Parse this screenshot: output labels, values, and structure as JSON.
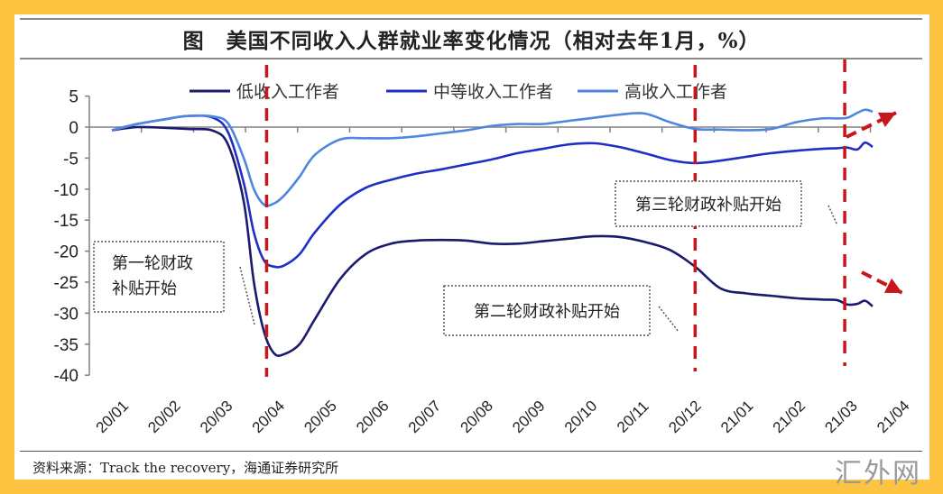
{
  "chart_data": {
    "type": "line",
    "title": "图　美国不同收入人群就业率变化情况（相对去年1月，%）",
    "xlabel": "",
    "ylabel": "",
    "ylim": [
      -40,
      5
    ],
    "yticks": [
      5,
      0,
      -5,
      -10,
      -15,
      -20,
      -25,
      -30,
      -35,
      -40
    ],
    "categories": [
      "20/01",
      "20/02",
      "20/03",
      "20/04",
      "20/05",
      "20/06",
      "20/07",
      "20/08",
      "20/09",
      "20/10",
      "20/11",
      "20/12",
      "21/01",
      "21/02",
      "21/03",
      "21/04"
    ],
    "legend_position": "top",
    "series": [
      {
        "name": "低收入工作者",
        "color": "#1a1a6e",
        "x": [
          0,
          0.5,
          1,
          1.5,
          2,
          2.3,
          2.6,
          2.8,
          3,
          3.2,
          3.4,
          3.7,
          4,
          4.5,
          5,
          5.5,
          6,
          6.5,
          7,
          7.5,
          8,
          8.5,
          9,
          9.5,
          10,
          10.5,
          11,
          11.5,
          12,
          12.5,
          13,
          13.5,
          14,
          14.3,
          14.5,
          14.7,
          14.85,
          15
        ],
        "values": [
          -0.5,
          0,
          -0.1,
          -0.3,
          -0.6,
          -3,
          -12,
          -25,
          -33,
          -36.5,
          -36.6,
          -35,
          -31,
          -24.5,
          -20.5,
          -18.8,
          -18.3,
          -18.2,
          -18.3,
          -18.8,
          -18.8,
          -18.4,
          -18,
          -17.6,
          -17.7,
          -18.5,
          -19.8,
          -22.5,
          -26,
          -26.8,
          -27.2,
          -27.6,
          -27.8,
          -27.9,
          -28.6,
          -28.5,
          -28,
          -28.9
        ]
      },
      {
        "name": "中等收入工作者",
        "color": "#1f2fc4",
        "x": [
          0,
          0.5,
          1,
          1.5,
          2,
          2.3,
          2.6,
          2.8,
          3,
          3.2,
          3.4,
          3.7,
          4,
          4.5,
          5,
          5.5,
          6,
          6.5,
          7,
          7.5,
          8,
          8.5,
          9,
          9.5,
          10,
          10.5,
          11,
          11.5,
          12,
          12.5,
          13,
          13.5,
          14,
          14.3,
          14.5,
          14.7,
          14.85,
          15
        ],
        "values": [
          -0.5,
          0.5,
          1.2,
          1.8,
          1.5,
          -1,
          -9,
          -17,
          -21.5,
          -22.5,
          -22.3,
          -20.5,
          -17,
          -12.5,
          -9.8,
          -8.5,
          -7.5,
          -6.8,
          -6,
          -5.2,
          -4.2,
          -3.5,
          -2.8,
          -2.6,
          -3.2,
          -4.2,
          -5.3,
          -5.8,
          -5.4,
          -4.8,
          -4.2,
          -3.8,
          -3.5,
          -3.4,
          -3.3,
          -3.6,
          -2.5,
          -3.2
        ]
      },
      {
        "name": "高收入工作者",
        "color": "#4f86e0",
        "x": [
          0,
          0.5,
          1,
          1.5,
          2,
          2.3,
          2.6,
          2.8,
          3,
          3.2,
          3.4,
          3.7,
          4,
          4.5,
          5,
          5.5,
          6,
          6.5,
          7,
          7.5,
          8,
          8.5,
          9,
          9.5,
          10,
          10.5,
          11,
          11.5,
          12,
          12.5,
          13,
          13.5,
          14,
          14.3,
          14.5,
          14.7,
          14.85,
          15
        ],
        "values": [
          -0.5,
          0.5,
          1.2,
          1.8,
          1.7,
          0.5,
          -5,
          -10,
          -12.5,
          -12.3,
          -11,
          -8,
          -4.5,
          -2,
          -1.8,
          -1.8,
          -1.5,
          -1,
          -0.5,
          0.2,
          0.5,
          0.5,
          1,
          1.5,
          2,
          2.2,
          0.8,
          -0.3,
          -0.4,
          -0.5,
          -0.3,
          0.8,
          1.4,
          1.4,
          1.5,
          2.3,
          2.8,
          2.5
        ]
      }
    ],
    "annotations": [
      {
        "text_lines": [
          "第一轮财政",
          "补贴开始"
        ]
      },
      {
        "text_lines": [
          "第二轮财政补贴开始"
        ]
      },
      {
        "text_lines": [
          "第三轮财政补贴开始"
        ]
      }
    ],
    "event_lines_x": [
      3.05,
      11.5,
      14.45
    ],
    "event_color": "#c8161d",
    "source": "资料来源：Track the recovery，海通证券研究所",
    "watermark": "汇外网"
  }
}
